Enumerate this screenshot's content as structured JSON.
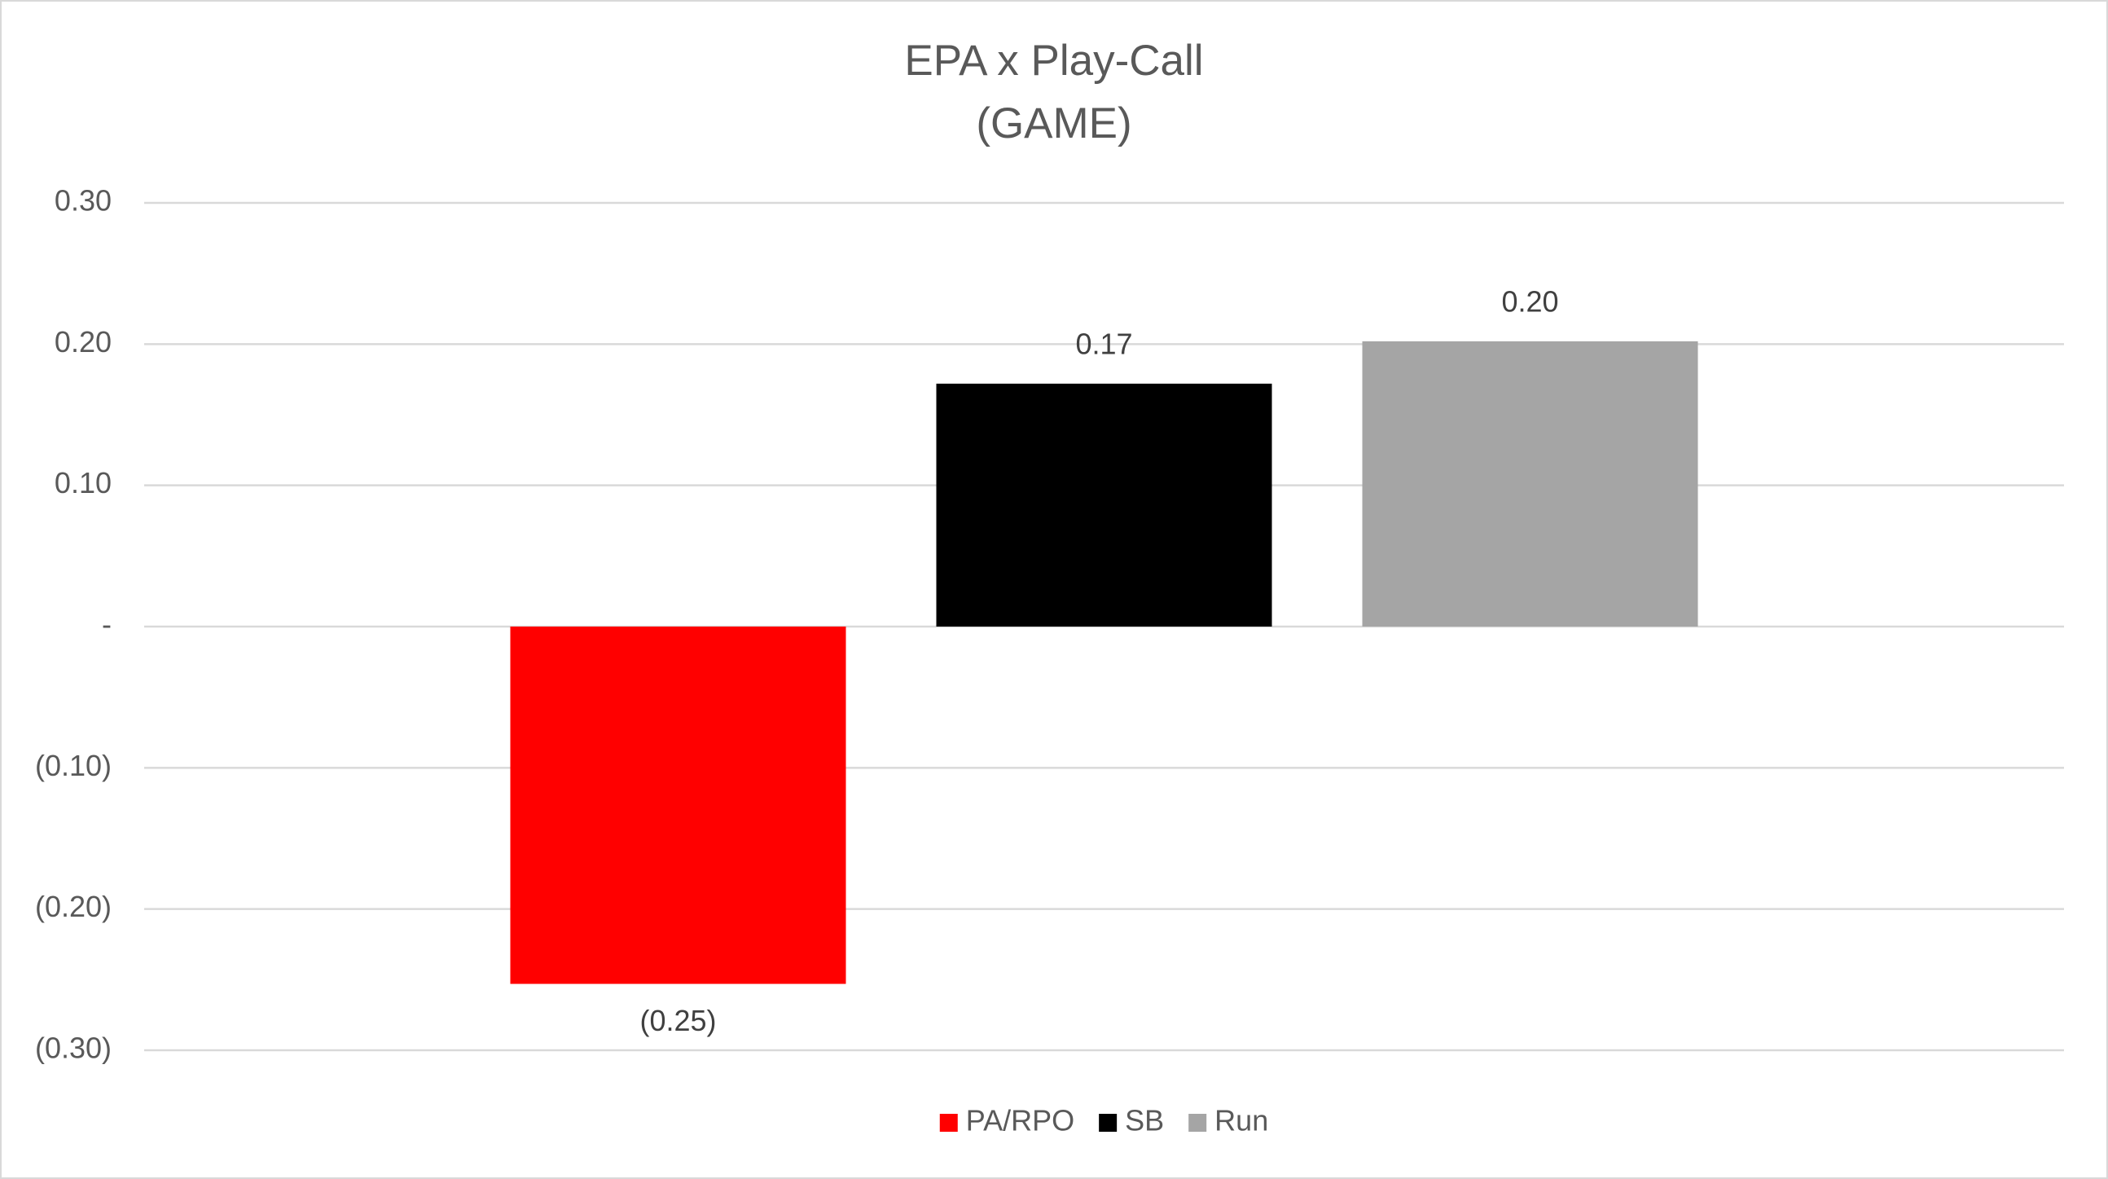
{
  "chart_data": {
    "type": "bar",
    "title": [
      "EPA x Play-Call",
      "(GAME)"
    ],
    "categories": [
      null
    ],
    "series": [
      {
        "name": "PA/RPO",
        "color": "#ff0000",
        "values": [
          -0.253
        ],
        "value_labels": [
          "(0.25)"
        ]
      },
      {
        "name": "SB",
        "color": "#000000",
        "values": [
          0.172
        ],
        "value_labels": [
          "0.17"
        ]
      },
      {
        "name": "Run",
        "color": "#a5a5a5",
        "values": [
          0.202
        ],
        "value_labels": [
          "0.20"
        ]
      }
    ],
    "ylim": [
      -0.3,
      0.3
    ],
    "yticks": [
      {
        "value": 0.3,
        "label": "0.30"
      },
      {
        "value": 0.2,
        "label": "0.20"
      },
      {
        "value": 0.1,
        "label": "0.10"
      },
      {
        "value": 0,
        "label": "-"
      },
      {
        "value": -0.1,
        "label": "(0.10)"
      },
      {
        "value": -0.2,
        "label": "(0.20)"
      },
      {
        "value": -0.3,
        "label": "(0.30)"
      }
    ],
    "grid": true,
    "legend": "bottom"
  }
}
